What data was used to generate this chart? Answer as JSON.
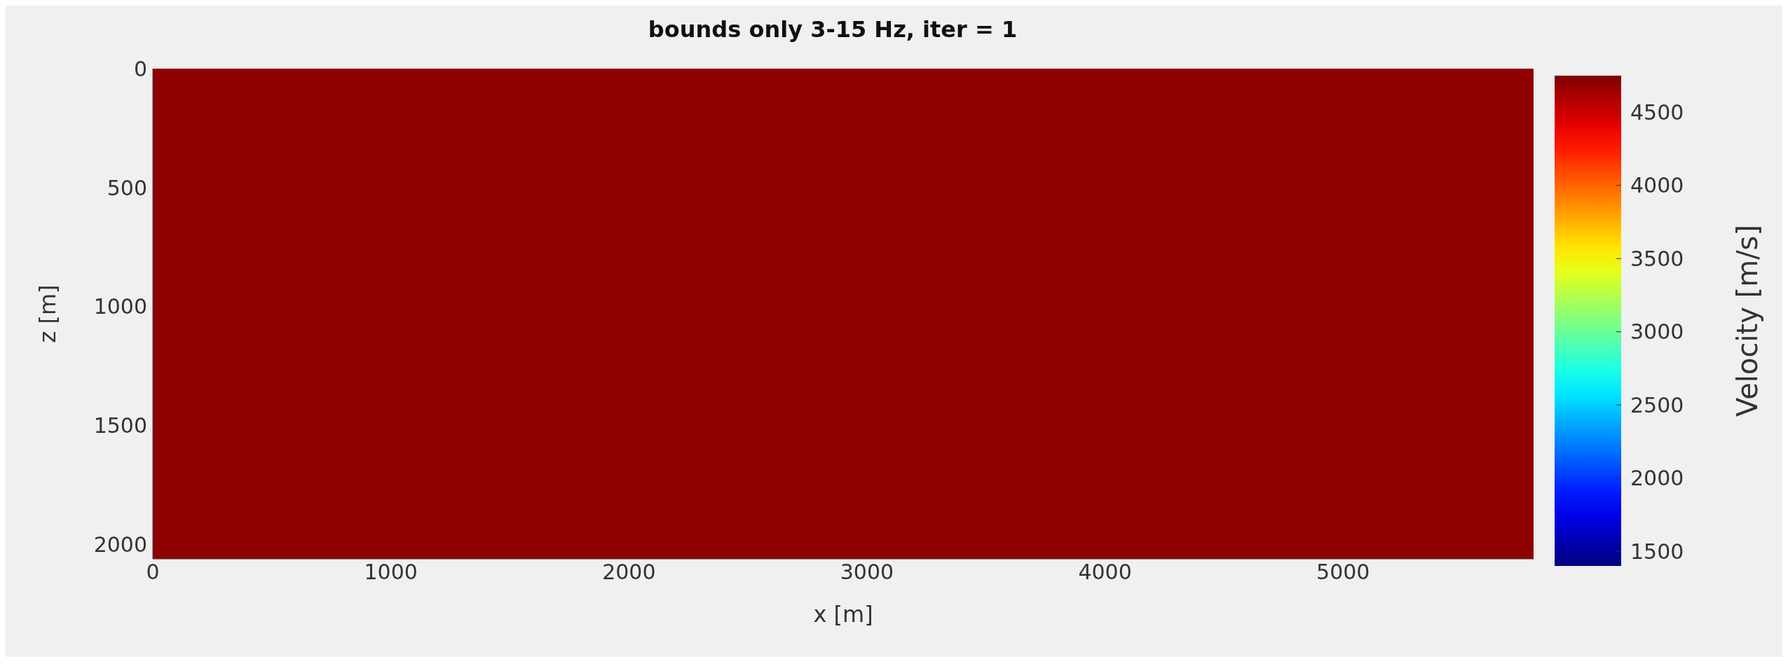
{
  "chart_data": {
    "type": "heatmap",
    "title": "bounds only 3-15 Hz, iter = 1",
    "xlabel": "x [m]",
    "ylabel": "z [m]",
    "clabel": "Velocity [m/s]",
    "cells": [
      [
        4700
      ]
    ],
    "xlim": [
      0,
      5800
    ],
    "xticks": [
      0,
      1000,
      2000,
      3000,
      4000,
      5000
    ],
    "ylim": [
      2060,
      0
    ],
    "yticks": [
      0,
      500,
      1000,
      1500,
      2000
    ],
    "clim": [
      1400,
      4750
    ],
    "cticks": [
      1500,
      2000,
      2500,
      3000,
      3500,
      4000,
      4500
    ]
  }
}
